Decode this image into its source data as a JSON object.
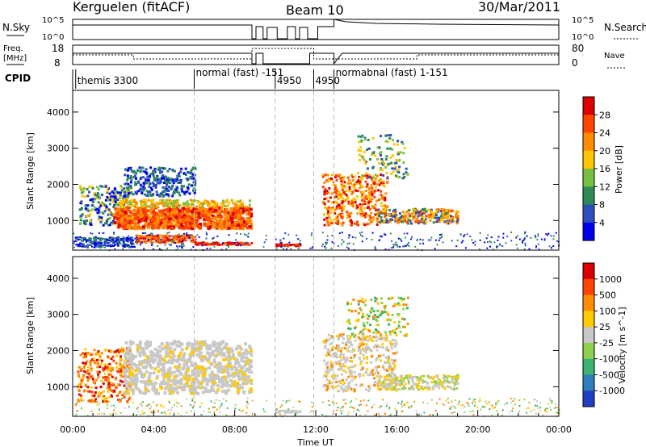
{
  "header": {
    "station": "Kerguelen (fitACF)",
    "beam": "Beam 10",
    "date": "30/Mar/2011"
  },
  "status_panels": {
    "nsky_label": "N.Sky",
    "nsearch_label": "N.Search",
    "left_scale_top": "10^5",
    "left_scale_bottom": "10^0",
    "right_scale_top": "10^5",
    "right_scale_bottom": "10^0",
    "freq_label_1": "Freq.",
    "freq_label_2": "[MHz]",
    "freq_top": "18",
    "freq_bottom": "8",
    "nave_top": "80",
    "nave_bottom": "0",
    "nave_label": "Nave",
    "cpid_label": "CPID"
  },
  "cpid_annotations": [
    {
      "text": "themis 3300",
      "hour": 0.15
    },
    {
      "text": "normal (fast) -151",
      "hour": 6.0
    },
    {
      "text": "4950",
      "hour": 10.0
    },
    {
      "text": "4950",
      "hour": 11.9
    },
    {
      "text": "normabnal (fast) 1-151",
      "hour": 12.9
    }
  ],
  "chart_data": [
    {
      "type": "heatmap",
      "panel": "power",
      "ylabel": "Slant Range [km]",
      "yticks": [
        "1000",
        "2000",
        "3000",
        "4000"
      ],
      "ylim": [
        180,
        4600
      ],
      "xlim": [
        0,
        24
      ],
      "colorbar_label": "Power [dB]",
      "colorbar_ticks": [
        "4",
        "8",
        "12",
        "16",
        "20",
        "24",
        "28"
      ],
      "colorbar_colors": [
        "#0000ee",
        "#2f4fbf",
        "#2e8b57",
        "#76c043",
        "#ffc400",
        "#ff8c00",
        "#ff4500",
        "#dd0000"
      ],
      "data_gaps_hours": [
        [
          8.9,
          9.4
        ],
        [
          9.6,
          10.0
        ],
        [
          11.3,
          11.7
        ],
        [
          11.9,
          12.3
        ]
      ]
    },
    {
      "type": "heatmap",
      "panel": "velocity",
      "xlabel": "Time UT",
      "ylabel": "Slant Range [km]",
      "xticks": [
        "00:00",
        "04:00",
        "08:00",
        "12:00",
        "16:00",
        "20:00",
        "00:00"
      ],
      "yticks": [
        "1000",
        "2000",
        "3000",
        "4000"
      ],
      "ylim": [
        180,
        4600
      ],
      "xlim": [
        0,
        24
      ],
      "colorbar_label": "Velocity [m s^-1]",
      "colorbar_ticks": [
        "1000",
        "500",
        "100",
        "25",
        "-25",
        "-100",
        "-500",
        "-1000"
      ],
      "colorbar_colors": [
        "#1e3fbf",
        "#2f7fbf",
        "#3cb371",
        "#8fd14f",
        "#c8c8c8",
        "#ffcc00",
        "#ff8c00",
        "#ff4500",
        "#dd0000"
      ],
      "data_gaps_hours": [
        [
          8.9,
          9.4
        ],
        [
          9.6,
          10.0
        ],
        [
          11.3,
          11.7
        ],
        [
          11.9,
          12.3
        ]
      ]
    }
  ]
}
